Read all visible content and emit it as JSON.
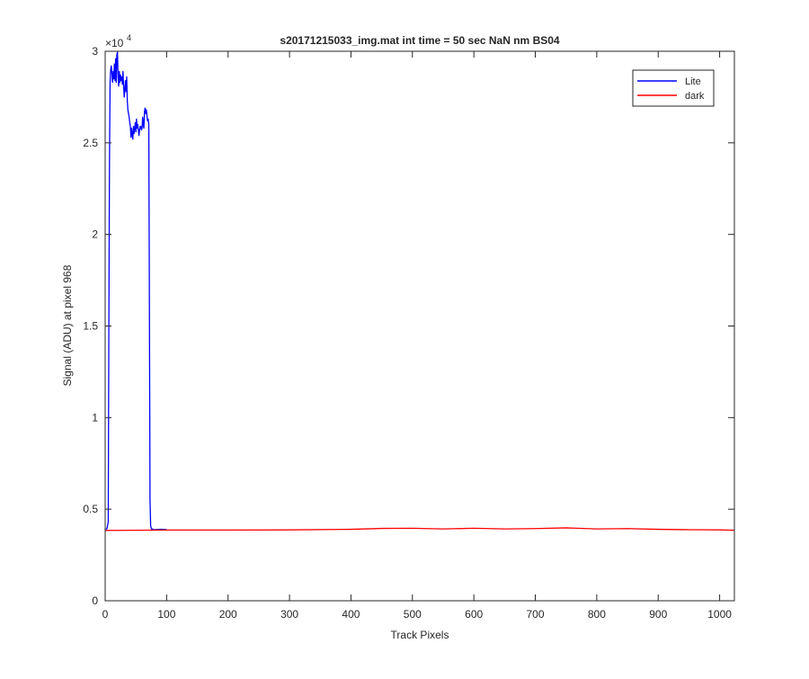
{
  "chart_data": {
    "type": "line",
    "title": "s20171215033_img.mat int time = 50 sec  NaN nm BS04",
    "xlabel": "Track Pixels",
    "ylabel": "Signal (ADU) at pixel 968",
    "y_exponent_label": "×10",
    "y_exponent_power": "4",
    "xlim": [
      0,
      1024
    ],
    "ylim": [
      0,
      30000
    ],
    "xticks": [
      0,
      100,
      200,
      300,
      400,
      500,
      600,
      700,
      800,
      900,
      1000
    ],
    "yticks": [
      0,
      5000,
      10000,
      15000,
      20000,
      25000,
      30000
    ],
    "ytick_labels": [
      "0",
      "0.5",
      "1",
      "1.5",
      "2",
      "2.5",
      "3"
    ],
    "legend_position": "top-right",
    "grid": false,
    "series": [
      {
        "name": "Lite",
        "color": "#0000ff",
        "x": [
          1,
          3,
          5,
          6,
          7,
          8,
          9,
          10,
          12,
          13,
          14,
          15,
          16,
          17,
          18,
          19,
          20,
          21,
          22,
          23,
          24,
          25,
          26,
          27,
          28,
          29,
          30,
          31,
          32,
          33,
          34,
          35,
          36,
          37,
          38,
          39,
          40,
          41,
          42,
          43,
          44,
          45,
          46,
          47,
          48,
          49,
          50,
          51,
          52,
          53,
          54,
          55,
          56,
          57,
          58,
          59,
          60,
          61,
          62,
          63,
          64,
          65,
          66,
          67,
          68,
          69,
          70,
          71,
          72,
          73,
          74,
          75,
          76,
          77,
          78,
          80,
          90,
          100
        ],
        "values": [
          3900,
          3950,
          4300,
          15000,
          24000,
          28300,
          29000,
          29200,
          28300,
          28900,
          28500,
          29300,
          28400,
          29600,
          28300,
          29800,
          29950,
          28600,
          28100,
          28900,
          28300,
          28700,
          28400,
          28600,
          28200,
          28900,
          28100,
          27500,
          27900,
          28400,
          27800,
          28600,
          27300,
          26800,
          26600,
          26400,
          26100,
          25900,
          25300,
          25800,
          25500,
          25200,
          25900,
          25500,
          25800,
          26100,
          25600,
          26300,
          25800,
          26000,
          25700,
          25400,
          25700,
          25900,
          25900,
          25700,
          25800,
          26400,
          26000,
          25800,
          26700,
          26900,
          26600,
          26800,
          26500,
          26200,
          26300,
          26000,
          16000,
          5500,
          4100,
          3950,
          3900,
          3920,
          3900,
          3880,
          3900,
          3890
        ]
      },
      {
        "name": "dark",
        "color": "#ff0000",
        "x": [
          0,
          100,
          200,
          300,
          400,
          450,
          500,
          550,
          600,
          650,
          700,
          750,
          800,
          850,
          900,
          950,
          1000,
          1024
        ],
        "values": [
          3840,
          3860,
          3860,
          3870,
          3900,
          3950,
          3960,
          3920,
          3960,
          3920,
          3940,
          3980,
          3920,
          3940,
          3900,
          3880,
          3870,
          3850
        ]
      }
    ]
  }
}
